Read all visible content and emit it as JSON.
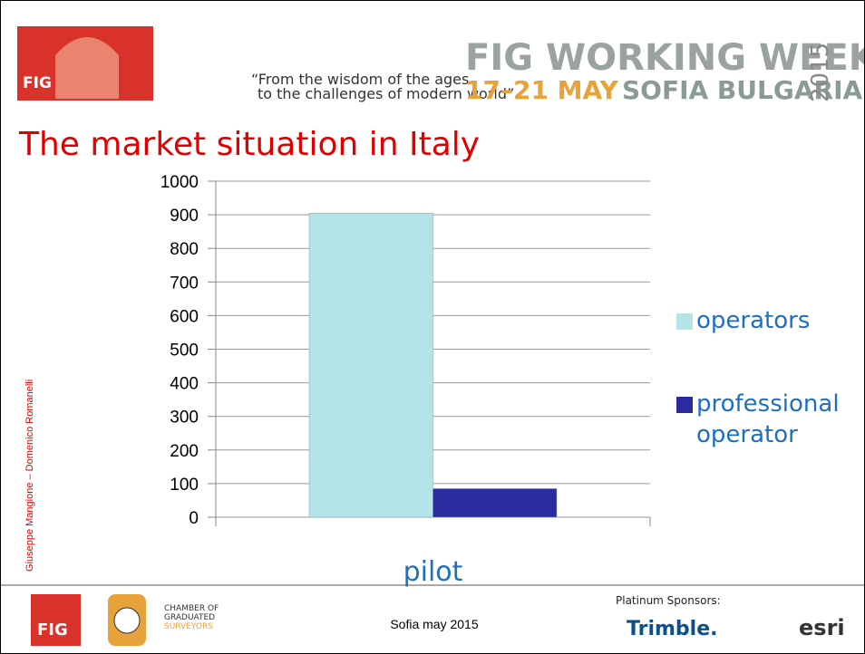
{
  "header": {
    "logo": "FIG",
    "quote_line1": "“From the wisdom of the ages",
    "quote_line2": "to the challenges of modern world”",
    "event": "FIG WORKING WEEK",
    "year": "2015",
    "dates": "17–21 MAY",
    "place": "SOFIA BULGARIA"
  },
  "chart_data": {
    "type": "bar",
    "title": "The market situation in Italy",
    "categories": [
      "pilot"
    ],
    "series": [
      {
        "name": "operators",
        "color": "#b4e4e8",
        "values": [
          905
        ]
      },
      {
        "name": "professional operator",
        "color": "#2b2ba0",
        "values": [
          85
        ]
      }
    ],
    "ylim": [
      0,
      1000
    ],
    "yticks": [
      0,
      100,
      200,
      300,
      400,
      500,
      600,
      700,
      800,
      900,
      1000
    ],
    "grid": true,
    "legend": "right"
  },
  "side_note": "Giuseppe Mangione – Domenico Romanelli",
  "footer": {
    "logo": "FIG",
    "chamber": [
      "CHAMBER OF",
      "GRADUATED",
      "SURVEYORS"
    ],
    "date": "Sofia may 2015",
    "sponsors_label": "Platinum Sponsors:",
    "sponsors": [
      "Trimble.",
      "esri"
    ]
  }
}
